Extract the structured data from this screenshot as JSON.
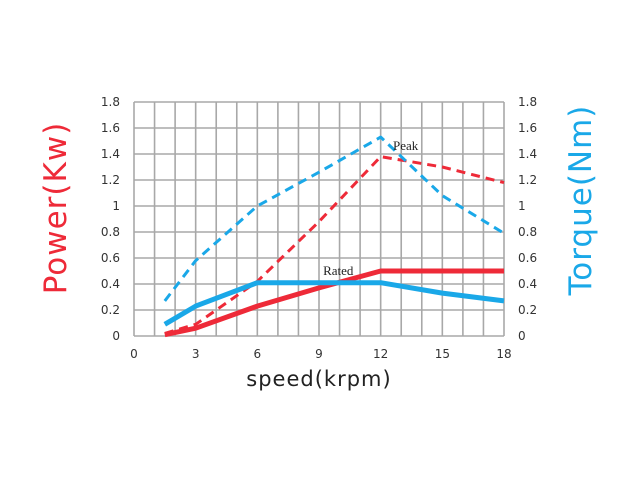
{
  "chart_data": {
    "type": "line",
    "xlabel": "speed(krpm)",
    "ylabel_left": "Power(Kw)",
    "ylabel_right": "Torque(Nm)",
    "xlim": [
      0,
      18
    ],
    "ylim_left": [
      0,
      1.8
    ],
    "ylim_right": [
      0,
      1.8
    ],
    "x_ticks": [
      "0",
      "3",
      "6",
      "9",
      "12",
      "15",
      "18"
    ],
    "y_ticks_left": [
      "0",
      "0.2",
      "0.4",
      "0.6",
      "0.8",
      "1",
      "1.2",
      "1.4",
      "1.6",
      "1.8"
    ],
    "y_ticks_right": [
      "0",
      "0.2",
      "0.4",
      "0.6",
      "0.8",
      "1",
      "1.2",
      "1.4",
      "1.6",
      "1.8"
    ],
    "grid": true,
    "colors": {
      "power": "#ee2a38",
      "torque": "#1aa8e8",
      "grid": "#a8a8a8"
    },
    "annotations": [
      {
        "text": "Peak",
        "x": 12.6,
        "y": 1.46
      },
      {
        "text": "Rated",
        "x": 9.2,
        "y": 0.5
      }
    ],
    "series": [
      {
        "axis": "left",
        "style": "dashed",
        "color": "#ee2a38",
        "width": 3,
        "x": [
          1.5,
          3,
          6,
          9,
          12,
          15,
          18
        ],
        "y": [
          0.02,
          0.09,
          0.42,
          0.88,
          1.38,
          1.3,
          1.18
        ]
      },
      {
        "axis": "right",
        "style": "dashed",
        "color": "#1aa8e8",
        "width": 3,
        "x": [
          1.5,
          3,
          6,
          9,
          12,
          15,
          18
        ],
        "y": [
          0.27,
          0.58,
          1.0,
          1.26,
          1.53,
          1.08,
          0.79
        ]
      },
      {
        "axis": "left",
        "style": "solid",
        "color": "#ee2a38",
        "width": 5,
        "x": [
          1.5,
          3,
          6,
          9,
          12,
          15,
          18
        ],
        "y": [
          0.01,
          0.06,
          0.23,
          0.37,
          0.5,
          0.5,
          0.5
        ]
      },
      {
        "axis": "right",
        "style": "solid",
        "color": "#1aa8e8",
        "width": 5,
        "x": [
          1.5,
          3,
          6,
          9,
          12,
          15,
          18
        ],
        "y": [
          0.09,
          0.23,
          0.41,
          0.41,
          0.41,
          0.33,
          0.27
        ]
      }
    ]
  }
}
